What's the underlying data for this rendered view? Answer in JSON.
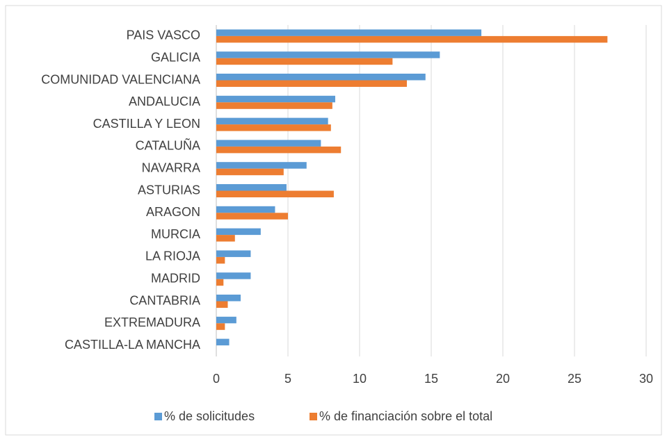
{
  "chart_data": {
    "type": "bar",
    "orientation": "horizontal",
    "categories": [
      "PAIS VASCO",
      "GALICIA",
      "COMUNIDAD VALENCIANA",
      "ANDALUCIA",
      "CASTILLA Y LEON",
      "CATALUÑA",
      "NAVARRA",
      "ASTURIAS",
      "ARAGON",
      "MURCIA",
      "LA RIOJA",
      "MADRID",
      "CANTABRIA",
      "EXTREMADURA",
      "CASTILLA-LA MANCHA"
    ],
    "series": [
      {
        "name": "% de solicitudes",
        "color": "#5b9bd5",
        "values": [
          18.5,
          15.6,
          14.6,
          8.3,
          7.8,
          7.3,
          6.3,
          4.9,
          4.1,
          3.1,
          2.4,
          2.4,
          1.7,
          1.4,
          0.9
        ]
      },
      {
        "name": "% de financiación sobre el total",
        "color": "#ed7d31",
        "values": [
          27.3,
          12.3,
          13.3,
          8.1,
          8.0,
          8.7,
          4.7,
          8.2,
          5.0,
          1.3,
          0.6,
          0.5,
          0.8,
          0.6,
          0
        ]
      }
    ],
    "xlim": [
      0,
      30
    ],
    "xticks": [
      0,
      5,
      10,
      15,
      20,
      25,
      30
    ],
    "grid": true,
    "legend": "bottom"
  }
}
